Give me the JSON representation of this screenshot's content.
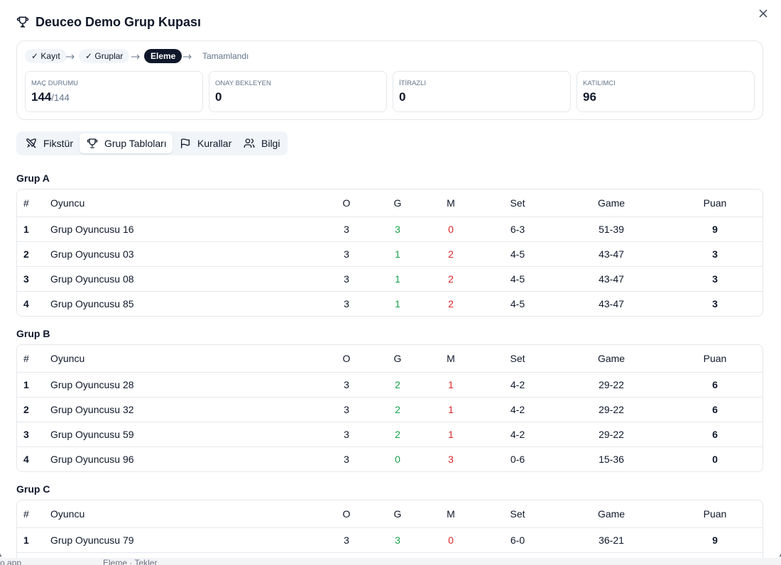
{
  "header": {
    "title": "Deuceo Demo Grup Kupası"
  },
  "steps": [
    {
      "label": "✓ Kayıt",
      "state": "done"
    },
    {
      "label": "✓ Gruplar",
      "state": "done"
    },
    {
      "label": "Eleme",
      "state": "active"
    },
    {
      "label": "Tamamlandı",
      "state": "todo"
    }
  ],
  "stats": [
    {
      "label": "MAÇ DURUMU",
      "value": "144",
      "total": "/144"
    },
    {
      "label": "ONAY BEKLEYEN",
      "value": "0"
    },
    {
      "label": "İTİRAZLI",
      "value": "0"
    },
    {
      "label": "KATILIMCI",
      "value": "96"
    }
  ],
  "tabs": [
    "Fikstür",
    "Grup Tabloları",
    "Kurallar",
    "Bilgi"
  ],
  "active_tab": 1,
  "table_headers": [
    "#",
    "Oyuncu",
    "O",
    "G",
    "M",
    "Set",
    "Game",
    "Puan"
  ],
  "groups": [
    {
      "title": "Grup A",
      "rows": [
        [
          1,
          "Grup Oyuncusu 16",
          3,
          3,
          0,
          "6-3",
          "51-39",
          9
        ],
        [
          2,
          "Grup Oyuncusu 03",
          3,
          1,
          2,
          "4-5",
          "43-47",
          3
        ],
        [
          3,
          "Grup Oyuncusu 08",
          3,
          1,
          2,
          "4-5",
          "43-47",
          3
        ],
        [
          4,
          "Grup Oyuncusu 85",
          3,
          1,
          2,
          "4-5",
          "43-47",
          3
        ]
      ]
    },
    {
      "title": "Grup B",
      "rows": [
        [
          1,
          "Grup Oyuncusu 28",
          3,
          2,
          1,
          "4-2",
          "29-22",
          6
        ],
        [
          2,
          "Grup Oyuncusu 32",
          3,
          2,
          1,
          "4-2",
          "29-22",
          6
        ],
        [
          3,
          "Grup Oyuncusu 59",
          3,
          2,
          1,
          "4-2",
          "29-22",
          6
        ],
        [
          4,
          "Grup Oyuncusu 96",
          3,
          0,
          3,
          "0-6",
          "15-36",
          0
        ]
      ]
    },
    {
      "title": "Grup C",
      "rows": [
        [
          1,
          "Grup Oyuncusu 79",
          3,
          3,
          0,
          "6-0",
          "36-21",
          9
        ]
      ]
    }
  ],
  "background": {
    "left": "o app",
    "crumb": "Eleme · Tekler"
  }
}
